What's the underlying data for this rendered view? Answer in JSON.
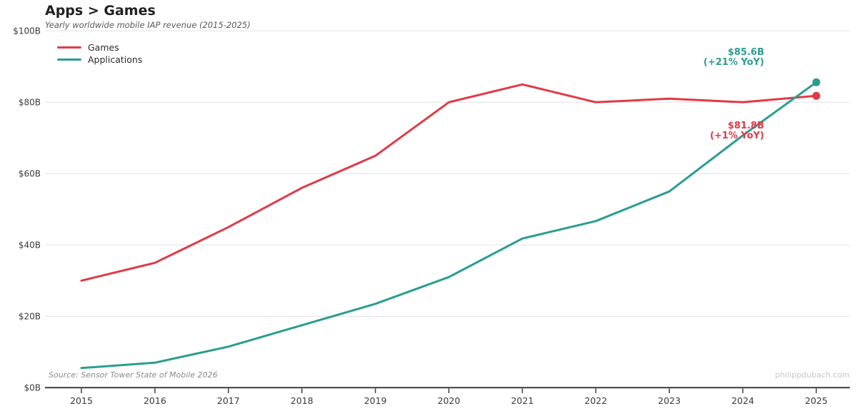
{
  "header": {
    "title": "Apps > Games",
    "subtitle": "Yearly worldwide mobile IAP revenue (2015-2025)"
  },
  "legend": {
    "items": [
      {
        "label": "Games",
        "color": "#e03a47"
      },
      {
        "label": "Applications",
        "color": "#2a9d8f"
      }
    ]
  },
  "annotations": {
    "applications": {
      "value": "$85.6B",
      "yoy": "(+21% YoY)",
      "color": "#2a9d8f"
    },
    "games": {
      "value": "$81.8B",
      "yoy": "(+1% YoY)",
      "color": "#e03a47"
    }
  },
  "footer": {
    "source": "Source: Sensor Tower State of Mobile 2026",
    "watermark": "philippdubach.com"
  },
  "chart_data": {
    "type": "line",
    "title": "Apps > Games",
    "subtitle": "Yearly worldwide mobile IAP revenue (2015-2025)",
    "x": [
      2015,
      2016,
      2017,
      2018,
      2019,
      2020,
      2021,
      2022,
      2023,
      2024,
      2025
    ],
    "series": [
      {
        "name": "Games",
        "color": "#e03a47",
        "values": [
          30,
          35,
          45,
          56,
          65,
          80,
          85,
          80,
          81,
          80,
          81.8
        ]
      },
      {
        "name": "Applications",
        "color": "#2a9d8f",
        "values": [
          5.5,
          7,
          11.5,
          17.5,
          23.5,
          31,
          41.8,
          46.7,
          55,
          70.7,
          85.6
        ]
      }
    ],
    "xlabel": "",
    "ylabel": "",
    "ylim": [
      0,
      100
    ],
    "yticks": [
      0,
      20,
      40,
      60,
      80,
      100
    ],
    "ytick_labels": [
      "$0B",
      "$20B",
      "$40B",
      "$60B",
      "$80B",
      "$100B"
    ],
    "grid": true,
    "legend_position": "top-left",
    "endpoint_markers": true
  }
}
